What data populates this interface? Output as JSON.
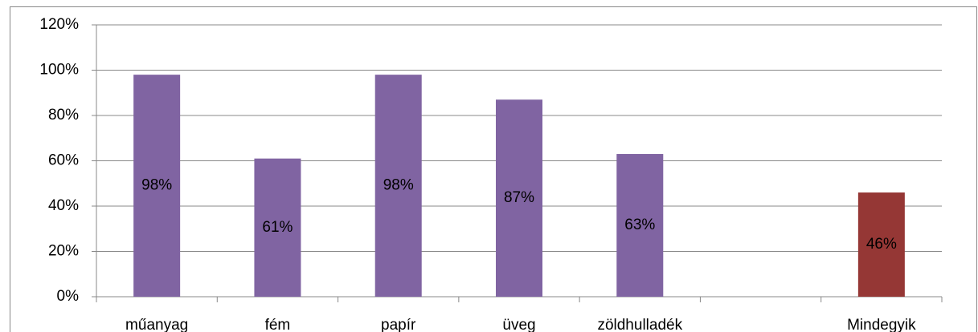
{
  "chart_data": {
    "type": "bar",
    "categories": [
      "műanyag",
      "fém",
      "papír",
      "üveg",
      "zöldhulladék",
      null,
      "Mindegyik"
    ],
    "values": [
      98,
      61,
      98,
      87,
      63,
      null,
      46
    ],
    "value_labels": [
      "98%",
      "61%",
      "98%",
      "87%",
      "63%",
      null,
      "46%"
    ],
    "colors": [
      "#8064a2",
      "#8064a2",
      "#8064a2",
      "#8064a2",
      "#8064a2",
      null,
      "#953735"
    ],
    "ylim": [
      0,
      120
    ],
    "yticks": [
      {
        "value": 0,
        "label": "0%"
      },
      {
        "value": 20,
        "label": "20%"
      },
      {
        "value": 40,
        "label": "40%"
      },
      {
        "value": 60,
        "label": "60%"
      },
      {
        "value": 80,
        "label": "80%"
      },
      {
        "value": 100,
        "label": "100%"
      },
      {
        "value": 120,
        "label": "120%"
      }
    ],
    "grid": true
  }
}
